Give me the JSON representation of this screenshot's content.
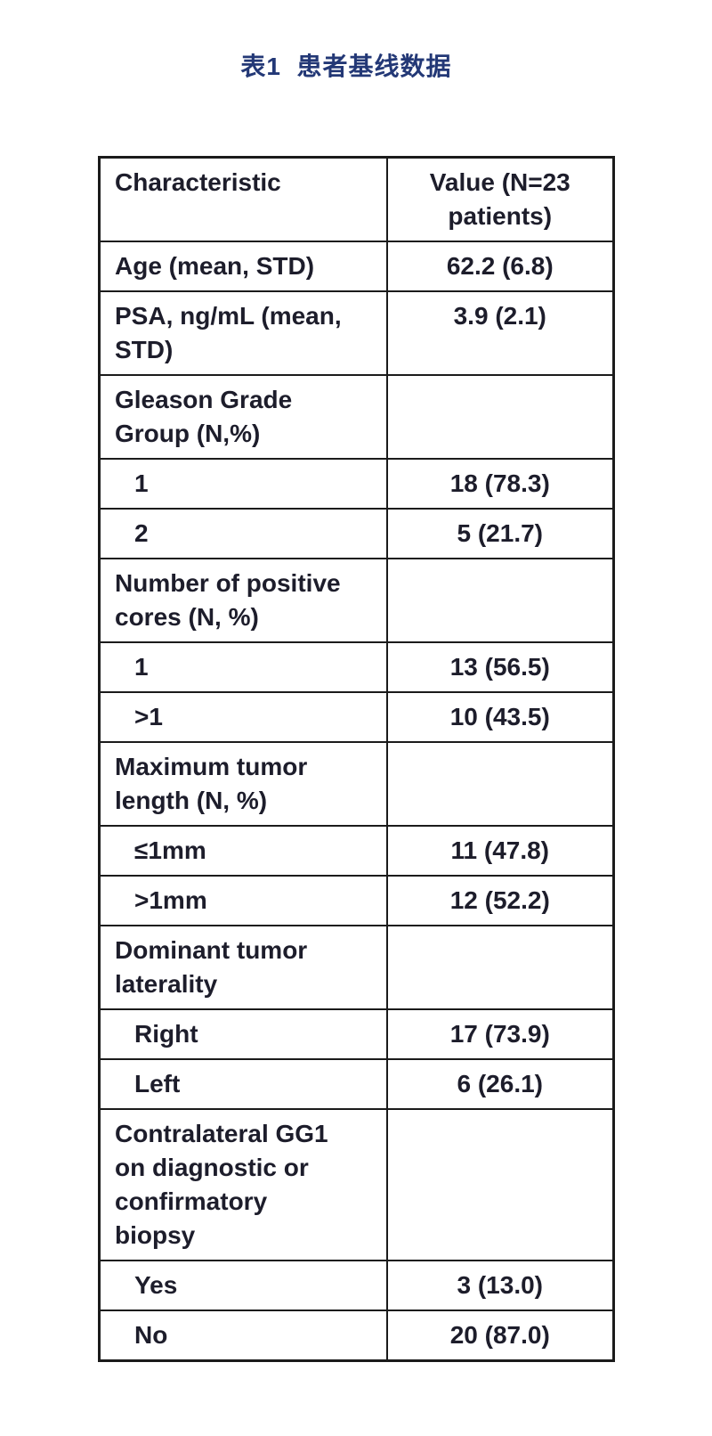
{
  "caption": {
    "text": "表1  患者基线数据",
    "color": "#233876"
  },
  "table": {
    "columns": [
      "Characteristic",
      "Value (N=23\npatients)"
    ],
    "border_color": "#1b1b1b",
    "text_color": "#1d1d2b",
    "rows": [
      {
        "label": "Age (mean, STD)",
        "value": "62.2 (6.8)",
        "indent": false
      },
      {
        "label": "PSA, ng/mL (mean,\nSTD)",
        "value": "3.9 (2.1)",
        "indent": false
      },
      {
        "label": "Gleason Grade\nGroup (N,%)",
        "value": "",
        "indent": false
      },
      {
        "label": "1",
        "value": "18 (78.3)",
        "indent": true
      },
      {
        "label": "2",
        "value": "5 (21.7)",
        "indent": true
      },
      {
        "label": "Number of positive\ncores (N, %)",
        "value": "",
        "indent": false
      },
      {
        "label": "1",
        "value": "13 (56.5)",
        "indent": true
      },
      {
        "label": ">1",
        "value": "10 (43.5)",
        "indent": true
      },
      {
        "label": "Maximum tumor\nlength (N, %)",
        "value": "",
        "indent": false
      },
      {
        "label": "≤1mm",
        "value": "11 (47.8)",
        "indent": true
      },
      {
        "label": ">1mm",
        "value": "12 (52.2)",
        "indent": true
      },
      {
        "label": "Dominant tumor\nlaterality",
        "value": "",
        "indent": false
      },
      {
        "label": "Right",
        "value": "17 (73.9)",
        "indent": true
      },
      {
        "label": "Left",
        "value": "6 (26.1)",
        "indent": true
      },
      {
        "label": "Contralateral GG1\non diagnostic or\nconfirmatory\nbiopsy",
        "value": "",
        "indent": false
      },
      {
        "label": "Yes",
        "value": "3 (13.0)",
        "indent": true
      },
      {
        "label": "No",
        "value": "20 (87.0)",
        "indent": true
      }
    ]
  }
}
